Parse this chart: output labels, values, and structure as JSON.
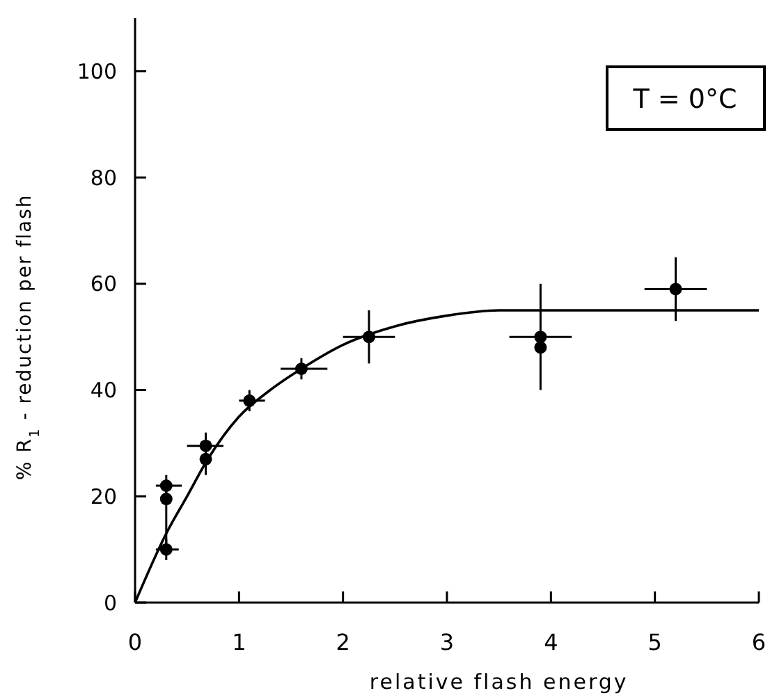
{
  "chart_data": {
    "type": "scatter",
    "xlabel": "relative flash energy",
    "ylabel": "% R$_{1}$ - reduction per flash",
    "annotations": [
      "T = 0°C"
    ],
    "xlim": [
      0,
      6
    ],
    "ylim": [
      0,
      110
    ],
    "xticks": [
      0,
      1,
      2,
      3,
      4,
      5,
      6
    ],
    "yticks": [
      0,
      20,
      40,
      60,
      80,
      100
    ],
    "grid": false,
    "marker": "circle",
    "series": [
      {
        "color": "#000000",
        "x": [
          0.3,
          0.3,
          0.3,
          0.68,
          0.68,
          1.1,
          1.6,
          2.25,
          3.9,
          3.9,
          5.2
        ],
        "values": [
          22,
          19.5,
          10,
          29.5,
          27,
          38,
          44,
          50,
          50,
          48,
          59
        ],
        "errors": [
          [
            20,
            24
          ],
          [
            11,
            21
          ],
          [
            8,
            12
          ],
          [
            27.5,
            32
          ],
          [
            24,
            28
          ],
          [
            36,
            40
          ],
          [
            42,
            46
          ],
          [
            45,
            55
          ],
          [
            40,
            60
          ],
          null,
          [
            53,
            65
          ]
        ],
        "xerrors": [
          [
            0.2,
            0.45
          ],
          null,
          [
            0.2,
            0.42
          ],
          [
            0.5,
            0.85
          ],
          null,
          [
            1.0,
            1.25
          ],
          [
            1.4,
            1.85
          ],
          [
            2.0,
            2.5
          ],
          [
            3.6,
            4.2
          ],
          null,
          [
            4.9,
            5.5
          ]
        ]
      },
      {
        "type": "line",
        "color": "#000000",
        "marker": "none",
        "line_style": "solid",
        "x": [
          0,
          0.3,
          0.5,
          0.7,
          1,
          1.3,
          1.6,
          2,
          2.5,
          3,
          3.5,
          4,
          6
        ],
        "values": [
          0,
          13,
          20,
          27,
          35,
          40,
          44,
          48.5,
          52,
          54,
          55,
          55,
          55
        ]
      }
    ]
  }
}
